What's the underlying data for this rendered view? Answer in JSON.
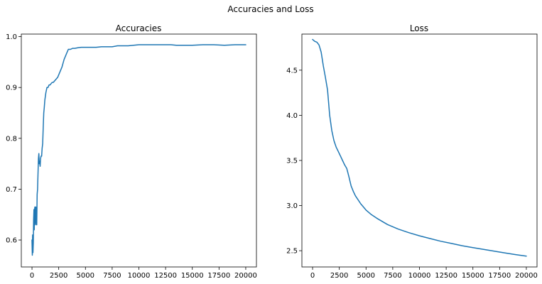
{
  "figure": {
    "suptitle": "Accuracies and Loss",
    "line_color": "#1f77b4"
  },
  "chart_data": [
    {
      "type": "line",
      "title": "Accuracies",
      "xlabel": "",
      "ylabel": "",
      "xlim": [
        -1000,
        21000
      ],
      "ylim": [
        0.547,
        1.005
      ],
      "xticks": [
        0,
        2500,
        5000,
        7500,
        10000,
        12500,
        15000,
        17500,
        20000
      ],
      "yticks": [
        0.6,
        0.7,
        0.8,
        0.9,
        1.0
      ],
      "ytick_labels": [
        "0.6",
        "0.7",
        "0.8",
        "0.9",
        "1.0"
      ],
      "grid": false,
      "series": [
        {
          "x": [
            0,
            30,
            60,
            90,
            120,
            150,
            180,
            210,
            240,
            270,
            300,
            330,
            360,
            400,
            440,
            480,
            520,
            560,
            600,
            640,
            680,
            720,
            760,
            800,
            850,
            900,
            950,
            1000,
            1050,
            1100,
            1150,
            1200,
            1300,
            1400,
            1500,
            1600,
            1700,
            1800,
            1900,
            2000,
            2200,
            2400,
            2600,
            2800,
            3000,
            3200,
            3400,
            3600,
            3800,
            4000,
            4300,
            4600,
            5000,
            5500,
            6000,
            6500,
            7000,
            7500,
            8000,
            8500,
            9000,
            9500,
            10000,
            11000,
            12000,
            13000,
            13500,
            14000,
            15000,
            16000,
            17000,
            18000,
            19000,
            20000
          ],
          "y": [
            0.6,
            0.57,
            0.61,
            0.575,
            0.595,
            0.64,
            0.66,
            0.62,
            0.66,
            0.665,
            0.645,
            0.63,
            0.665,
            0.64,
            0.63,
            0.69,
            0.7,
            0.73,
            0.76,
            0.77,
            0.75,
            0.755,
            0.745,
            0.76,
            0.765,
            0.765,
            0.78,
            0.79,
            0.82,
            0.85,
            0.86,
            0.875,
            0.89,
            0.9,
            0.9,
            0.905,
            0.905,
            0.908,
            0.91,
            0.91,
            0.915,
            0.92,
            0.93,
            0.94,
            0.955,
            0.965,
            0.975,
            0.975,
            0.977,
            0.977,
            0.978,
            0.979,
            0.979,
            0.979,
            0.979,
            0.98,
            0.98,
            0.98,
            0.982,
            0.982,
            0.982,
            0.983,
            0.984,
            0.984,
            0.984,
            0.984,
            0.983,
            0.983,
            0.983,
            0.984,
            0.984,
            0.983,
            0.984,
            0.984
          ]
        }
      ]
    },
    {
      "type": "line",
      "title": "Loss",
      "xlabel": "",
      "ylabel": "",
      "xlim": [
        -1000,
        21000
      ],
      "ylim": [
        2.32,
        4.9
      ],
      "xticks": [
        0,
        2500,
        5000,
        7500,
        10000,
        12500,
        15000,
        17500,
        20000
      ],
      "yticks": [
        2.5,
        3.0,
        3.5,
        4.0,
        4.5
      ],
      "ytick_labels": [
        "2.5",
        "3.0",
        "3.5",
        "4.0",
        "4.5"
      ],
      "grid": false,
      "series": [
        {
          "x": [
            0,
            200,
            400,
            600,
            800,
            1000,
            1200,
            1400,
            1600,
            1800,
            2000,
            2200,
            2400,
            2600,
            2800,
            3000,
            3200,
            3400,
            3600,
            3800,
            4000,
            4500,
            5000,
            5500,
            6000,
            7000,
            8000,
            9000,
            10000,
            11000,
            12000,
            13000,
            14000,
            15000,
            16000,
            17000,
            18000,
            19000,
            20000
          ],
          "y": [
            4.84,
            4.82,
            4.81,
            4.78,
            4.7,
            4.55,
            4.42,
            4.28,
            4.0,
            3.83,
            3.72,
            3.65,
            3.6,
            3.55,
            3.5,
            3.45,
            3.41,
            3.32,
            3.22,
            3.16,
            3.11,
            3.02,
            2.95,
            2.9,
            2.86,
            2.79,
            2.74,
            2.7,
            2.665,
            2.635,
            2.605,
            2.58,
            2.555,
            2.535,
            2.515,
            2.495,
            2.475,
            2.457,
            2.44
          ]
        }
      ]
    }
  ]
}
